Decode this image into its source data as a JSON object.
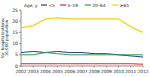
{
  "chart_data": {
    "type": "line",
    "ylabel": [
      "No. hospitalizations/",
      "10,000 population"
    ],
    "legend_title": "Age, y",
    "x": [
      2002,
      2003,
      2004,
      2005,
      2006,
      2007,
      2008,
      2009,
      2010,
      2011,
      2012
    ],
    "xlim": [
      2002,
      2012
    ],
    "xticks": [
      2002,
      2003,
      2004,
      2005,
      2006,
      2007,
      2008,
      2009,
      2010,
      2011,
      2012
    ],
    "ylim": [
      0,
      25
    ],
    "yticks": [
      0,
      5,
      10,
      15,
      20,
      25
    ],
    "legend": "top",
    "series": [
      {
        "name": "<5",
        "color": "#1f3f8f",
        "values": [
          6,
          6.5,
          6,
          6.5,
          6,
          6,
          5.5,
          5.5,
          5,
          4.5,
          4
        ]
      },
      {
        "name": "5–19",
        "color": "#d9262b",
        "values": [
          1,
          1,
          1,
          1,
          1,
          1,
          1,
          1,
          1,
          1,
          0.8
        ]
      },
      {
        "name": "20–64",
        "color": "#2e9e4a",
        "values": [
          5,
          5,
          6,
          5.5,
          5,
          5,
          5,
          5,
          5,
          5,
          5
        ]
      },
      {
        "name": "≥65",
        "color": "#f2d21b",
        "values": [
          17,
          18,
          21,
          21.5,
          21,
          21,
          21,
          21,
          21,
          17.5,
          15
        ]
      }
    ]
  }
}
